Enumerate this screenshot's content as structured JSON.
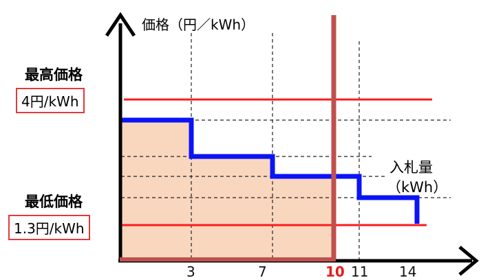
{
  "y_axis_title": "価格（円／kWh）",
  "x_axis_title_line1": "入札量",
  "x_axis_title_line2": "（kWh）",
  "max_price": {
    "heading": "最高価格",
    "value": "4円/kWh"
  },
  "min_price": {
    "heading": "最低価格",
    "value": "1.3円/kWh"
  },
  "x_ticks": [
    "3",
    "7",
    "10",
    "11",
    "14"
  ],
  "highlight_tick": "10",
  "colors": {
    "step_line": "#0a14f5",
    "limit_lines": "#ff1a1a",
    "shaded_area": "#f9d6be",
    "cutoff_line": "#c0504d",
    "axes": "#000000"
  }
}
